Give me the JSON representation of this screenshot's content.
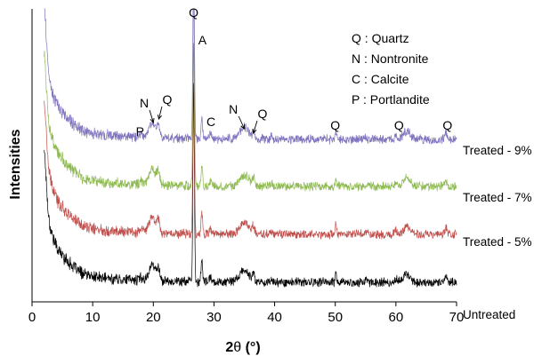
{
  "chart_data": {
    "type": "line",
    "title": "",
    "xlabel_main": "2",
    "xlabel_theta": "θ",
    "xlabel_unit": " (°)",
    "ylabel": "Intensities",
    "xlim": [
      0,
      70
    ],
    "xticks": [
      0,
      10,
      20,
      30,
      40,
      50,
      60,
      70
    ],
    "grid": false,
    "legend_position": "top-right",
    "legend": [
      {
        "code": "Q",
        "sep": " : ",
        "name": "Quartz"
      },
      {
        "code": "N",
        "sep": " : ",
        "name": "Nontronite"
      },
      {
        "code": "C",
        "sep": " : ",
        "name": "Calcite"
      },
      {
        "code": "P",
        "sep": " : ",
        "name": "Portlandite"
      }
    ],
    "series": [
      {
        "name": "Untreated",
        "color": "#000000",
        "offset": 0
      },
      {
        "name": "Treated - 5%",
        "color": "#c0504d",
        "offset": 1
      },
      {
        "name": "Treated - 7%",
        "color": "#8fba53",
        "offset": 2
      },
      {
        "name": "Treated - 9%",
        "color": "#7f73bd",
        "offset": 3
      }
    ],
    "peaks": [
      {
        "x": 2.0,
        "h": 1.2,
        "w": 0.35
      },
      {
        "x": 5.5,
        "h": 0.18,
        "w": 1.6
      },
      {
        "x": 18.0,
        "h": 0.08,
        "w": 0.3
      },
      {
        "x": 19.8,
        "h": 0.45,
        "w": 0.5
      },
      {
        "x": 20.8,
        "h": 0.35,
        "w": 0.25
      },
      {
        "x": 26.65,
        "h": 5.5,
        "w": 0.12
      },
      {
        "x": 28.0,
        "h": 0.6,
        "w": 0.12
      },
      {
        "x": 29.4,
        "h": 0.1,
        "w": 0.2
      },
      {
        "x": 35.0,
        "h": 0.32,
        "w": 0.8
      },
      {
        "x": 36.5,
        "h": 0.22,
        "w": 0.15
      },
      {
        "x": 39.5,
        "h": 0.08,
        "w": 0.15
      },
      {
        "x": 50.1,
        "h": 0.25,
        "w": 0.12
      },
      {
        "x": 55.0,
        "h": 0.06,
        "w": 0.2
      },
      {
        "x": 60.0,
        "h": 0.1,
        "w": 0.2
      },
      {
        "x": 61.8,
        "h": 0.22,
        "w": 0.6
      },
      {
        "x": 68.2,
        "h": 0.18,
        "w": 0.2
      }
    ],
    "annotations": [
      {
        "label": "Q",
        "x": 26.65,
        "arrow": false
      },
      {
        "label": "A",
        "x": 28.1,
        "arrow": false
      },
      {
        "label": "N",
        "x": 18.5,
        "arrow": true,
        "to_x": 20.0
      },
      {
        "label": "Q",
        "x": 22.3,
        "arrow": true,
        "to_x": 20.9
      },
      {
        "label": "P",
        "x": 17.8,
        "arrow": false
      },
      {
        "label": "C",
        "x": 29.5,
        "arrow": false
      },
      {
        "label": "N",
        "x": 33.2,
        "arrow": true,
        "to_x": 35.0
      },
      {
        "label": "Q",
        "x": 38.0,
        "arrow": true,
        "to_x": 36.5
      },
      {
        "label": "Q",
        "x": 50.0,
        "arrow": false
      },
      {
        "label": "Q",
        "x": 60.5,
        "arrow": false
      },
      {
        "label": "Q",
        "x": 68.5,
        "arrow": false
      }
    ]
  }
}
